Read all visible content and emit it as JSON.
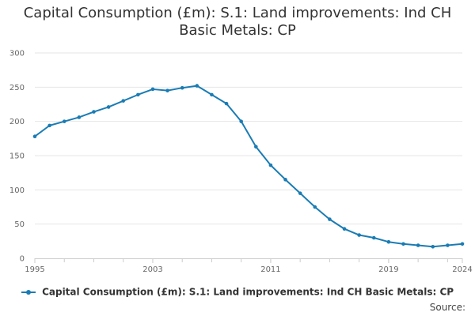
{
  "chart_data": {
    "type": "line",
    "title": "Capital Consumption (£m): S.1: Land improvements: Ind CH Basic Metals: CP",
    "title_lines": [
      "Capital Consumption (£m): S.1: Land improvements: Ind CH",
      "Basic Metals: CP"
    ],
    "xlabel": "",
    "ylabel": "",
    "x": [
      1995,
      1996,
      1997,
      1998,
      1999,
      2000,
      2001,
      2002,
      2003,
      2004,
      2005,
      2006,
      2007,
      2008,
      2009,
      2010,
      2011,
      2012,
      2013,
      2014,
      2015,
      2016,
      2017,
      2018,
      2019,
      2020,
      2021,
      2022,
      2023,
      2024
    ],
    "series": [
      {
        "name": "Capital Consumption (£m): S.1: Land improvements: Ind CH Basic Metals: CP",
        "color": "#1a7cb4",
        "values": [
          178,
          194,
          200,
          206,
          214,
          221,
          230,
          239,
          247,
          245,
          249,
          252,
          239,
          226,
          200,
          163,
          136,
          115,
          95,
          75,
          57,
          43,
          34,
          30,
          24,
          21,
          19,
          17,
          19,
          21
        ]
      }
    ],
    "xlim": [
      1995,
      2024
    ],
    "ylim": [
      0,
      300
    ],
    "yticks": [
      0,
      50,
      100,
      150,
      200,
      250,
      300
    ],
    "xticks": [
      1995,
      2003,
      2011,
      2019,
      2024
    ],
    "grid": true,
    "legend_position": "bottom"
  },
  "source_label": "Source:"
}
